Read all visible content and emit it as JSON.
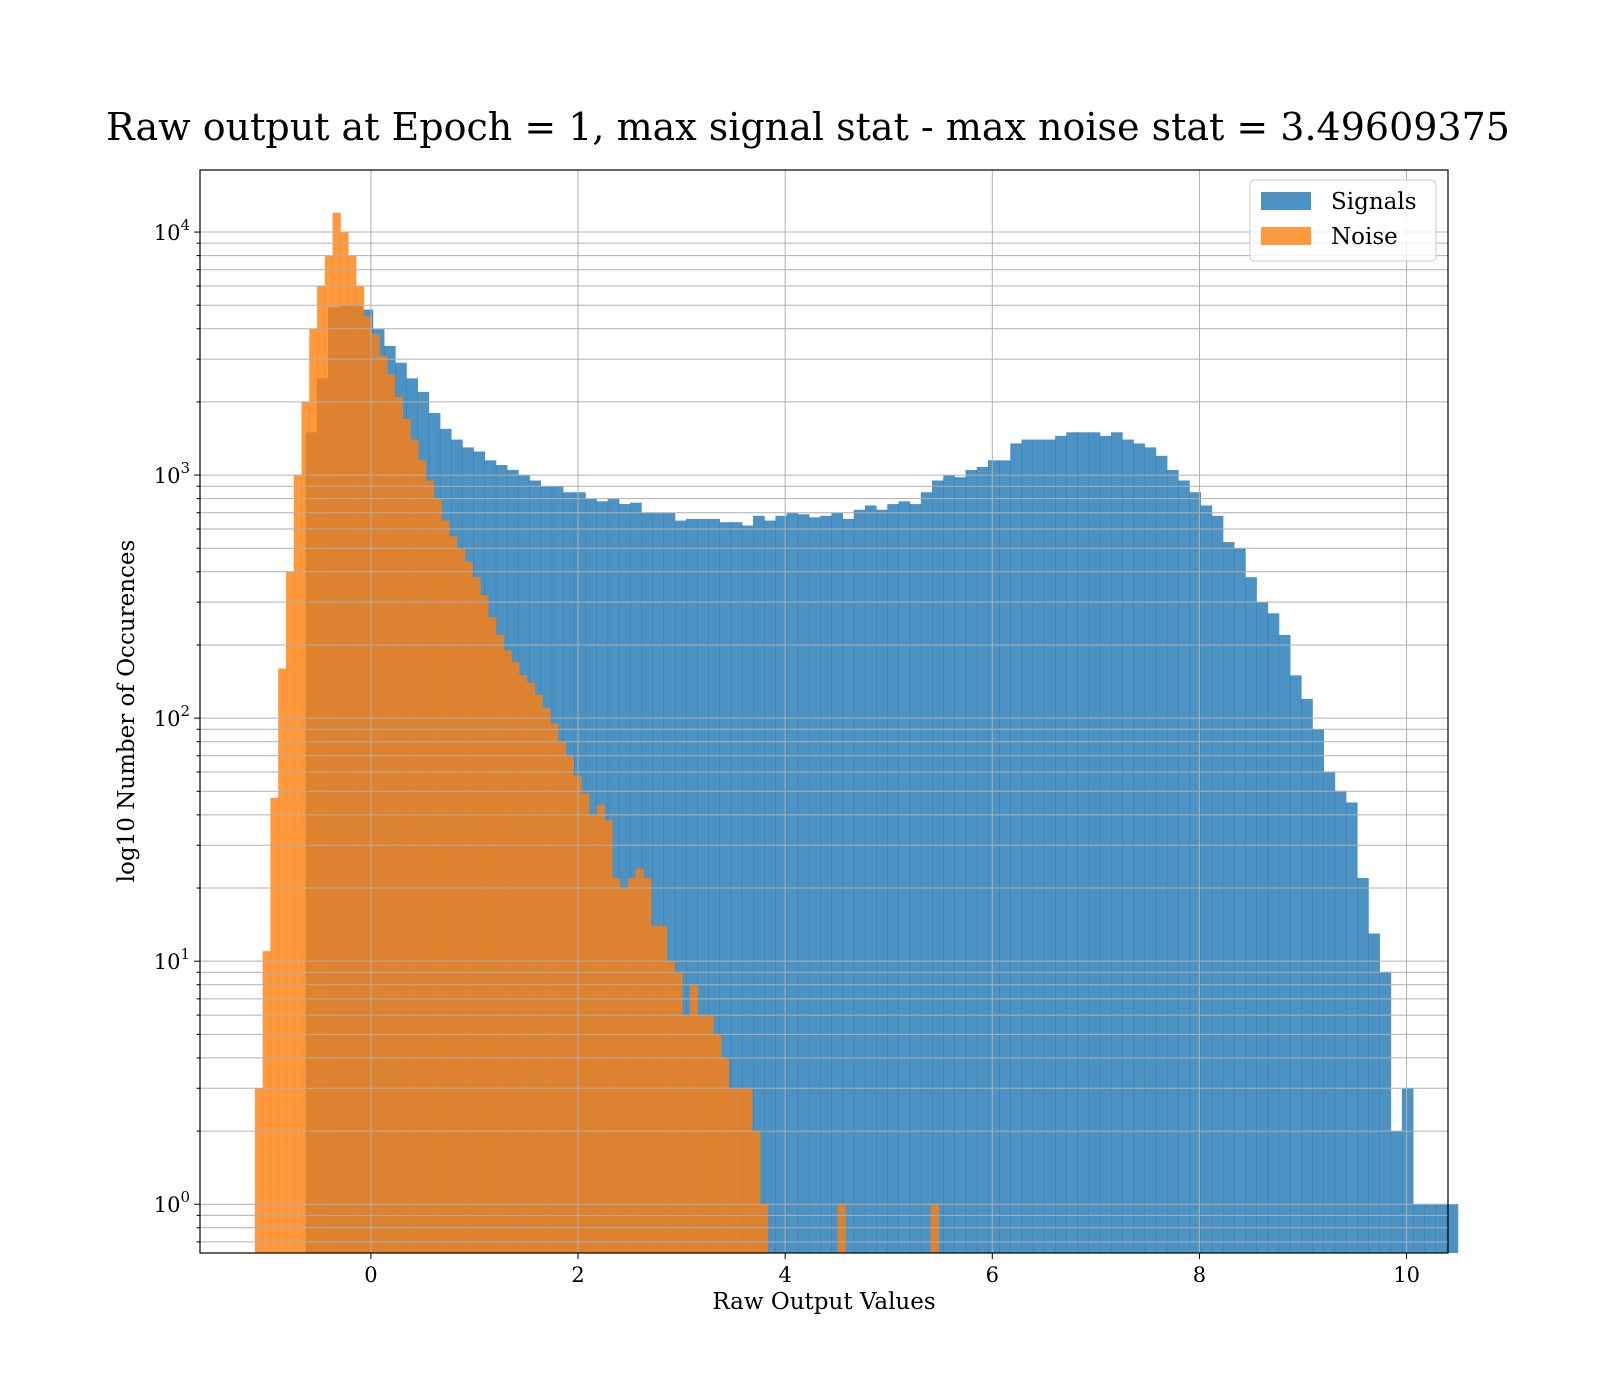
{
  "chart_data": {
    "type": "histogram",
    "title": "Raw output at Epoch = 1, max signal stat - max noise stat = 3.49609375",
    "xlabel": "Raw Output Values",
    "ylabel": "log10 Number of Occurences",
    "yscale": "log",
    "xlim": [
      -1.65,
      10.4
    ],
    "ylim": [
      0.63,
      18000
    ],
    "grid": true,
    "legend_position": "top-right",
    "x_ticks": [
      0,
      2,
      4,
      6,
      8,
      10
    ],
    "x_tick_labels": [
      "0",
      "2",
      "4",
      "6",
      "8",
      "10"
    ],
    "y_ticks": [
      1,
      10,
      100,
      1000,
      10000
    ],
    "y_tick_labels": [
      {
        "base": "10",
        "exp": "0"
      },
      {
        "base": "10",
        "exp": "1"
      },
      {
        "base": "10",
        "exp": "2"
      },
      {
        "base": "10",
        "exp": "3"
      },
      {
        "base": "10",
        "exp": "4"
      }
    ],
    "series": [
      {
        "name": "Signals",
        "color": "#1f77b4",
        "opacity": 0.8,
        "bin_start": -0.63,
        "bin_width": 0.108,
        "counts": [
          1500,
          2500,
          4900,
          5000,
          5000,
          4800,
          4000,
          3400,
          2900,
          2500,
          2200,
          1800,
          1550,
          1400,
          1300,
          1250,
          1150,
          1100,
          1050,
          1000,
          950,
          900,
          900,
          850,
          850,
          800,
          780,
          800,
          760,
          770,
          700,
          700,
          700,
          650,
          660,
          660,
          660,
          640,
          640,
          620,
          680,
          650,
          680,
          700,
          690,
          670,
          680,
          700,
          660,
          720,
          750,
          720,
          760,
          780,
          760,
          850,
          950,
          1000,
          980,
          1050,
          1080,
          1150,
          1150,
          1350,
          1400,
          1400,
          1400,
          1450,
          1500,
          1500,
          1500,
          1450,
          1500,
          1400,
          1350,
          1300,
          1200,
          1050,
          950,
          850,
          750,
          680,
          530,
          500,
          380,
          300,
          270,
          220,
          150,
          120,
          90,
          60,
          50,
          45,
          22,
          13,
          9,
          2,
          3,
          1,
          1,
          1,
          1
        ]
      },
      {
        "name": "Noise",
        "color": "#ff7f0e",
        "opacity": 0.8,
        "bin_start": -1.12,
        "bin_width": 0.075,
        "counts": [
          3,
          11,
          47,
          160,
          400,
          1000,
          2000,
          4000,
          6000,
          8000,
          12000,
          10000,
          8000,
          6000,
          4500,
          3800,
          3100,
          2600,
          2100,
          1700,
          1400,
          1150,
          950,
          800,
          650,
          560,
          500,
          440,
          380,
          320,
          260,
          220,
          190,
          170,
          150,
          140,
          125,
          110,
          95,
          80,
          70,
          58,
          49,
          40,
          44,
          38,
          22,
          20,
          22,
          24,
          22,
          14,
          14,
          10,
          9,
          6,
          8,
          6,
          6,
          5,
          4,
          3,
          3,
          3,
          2,
          1,
          0,
          0,
          0,
          0,
          0,
          0,
          0,
          0,
          0,
          1,
          0,
          0,
          0,
          0,
          0,
          0,
          0,
          0,
          0,
          0,
          0,
          1
        ]
      }
    ]
  }
}
